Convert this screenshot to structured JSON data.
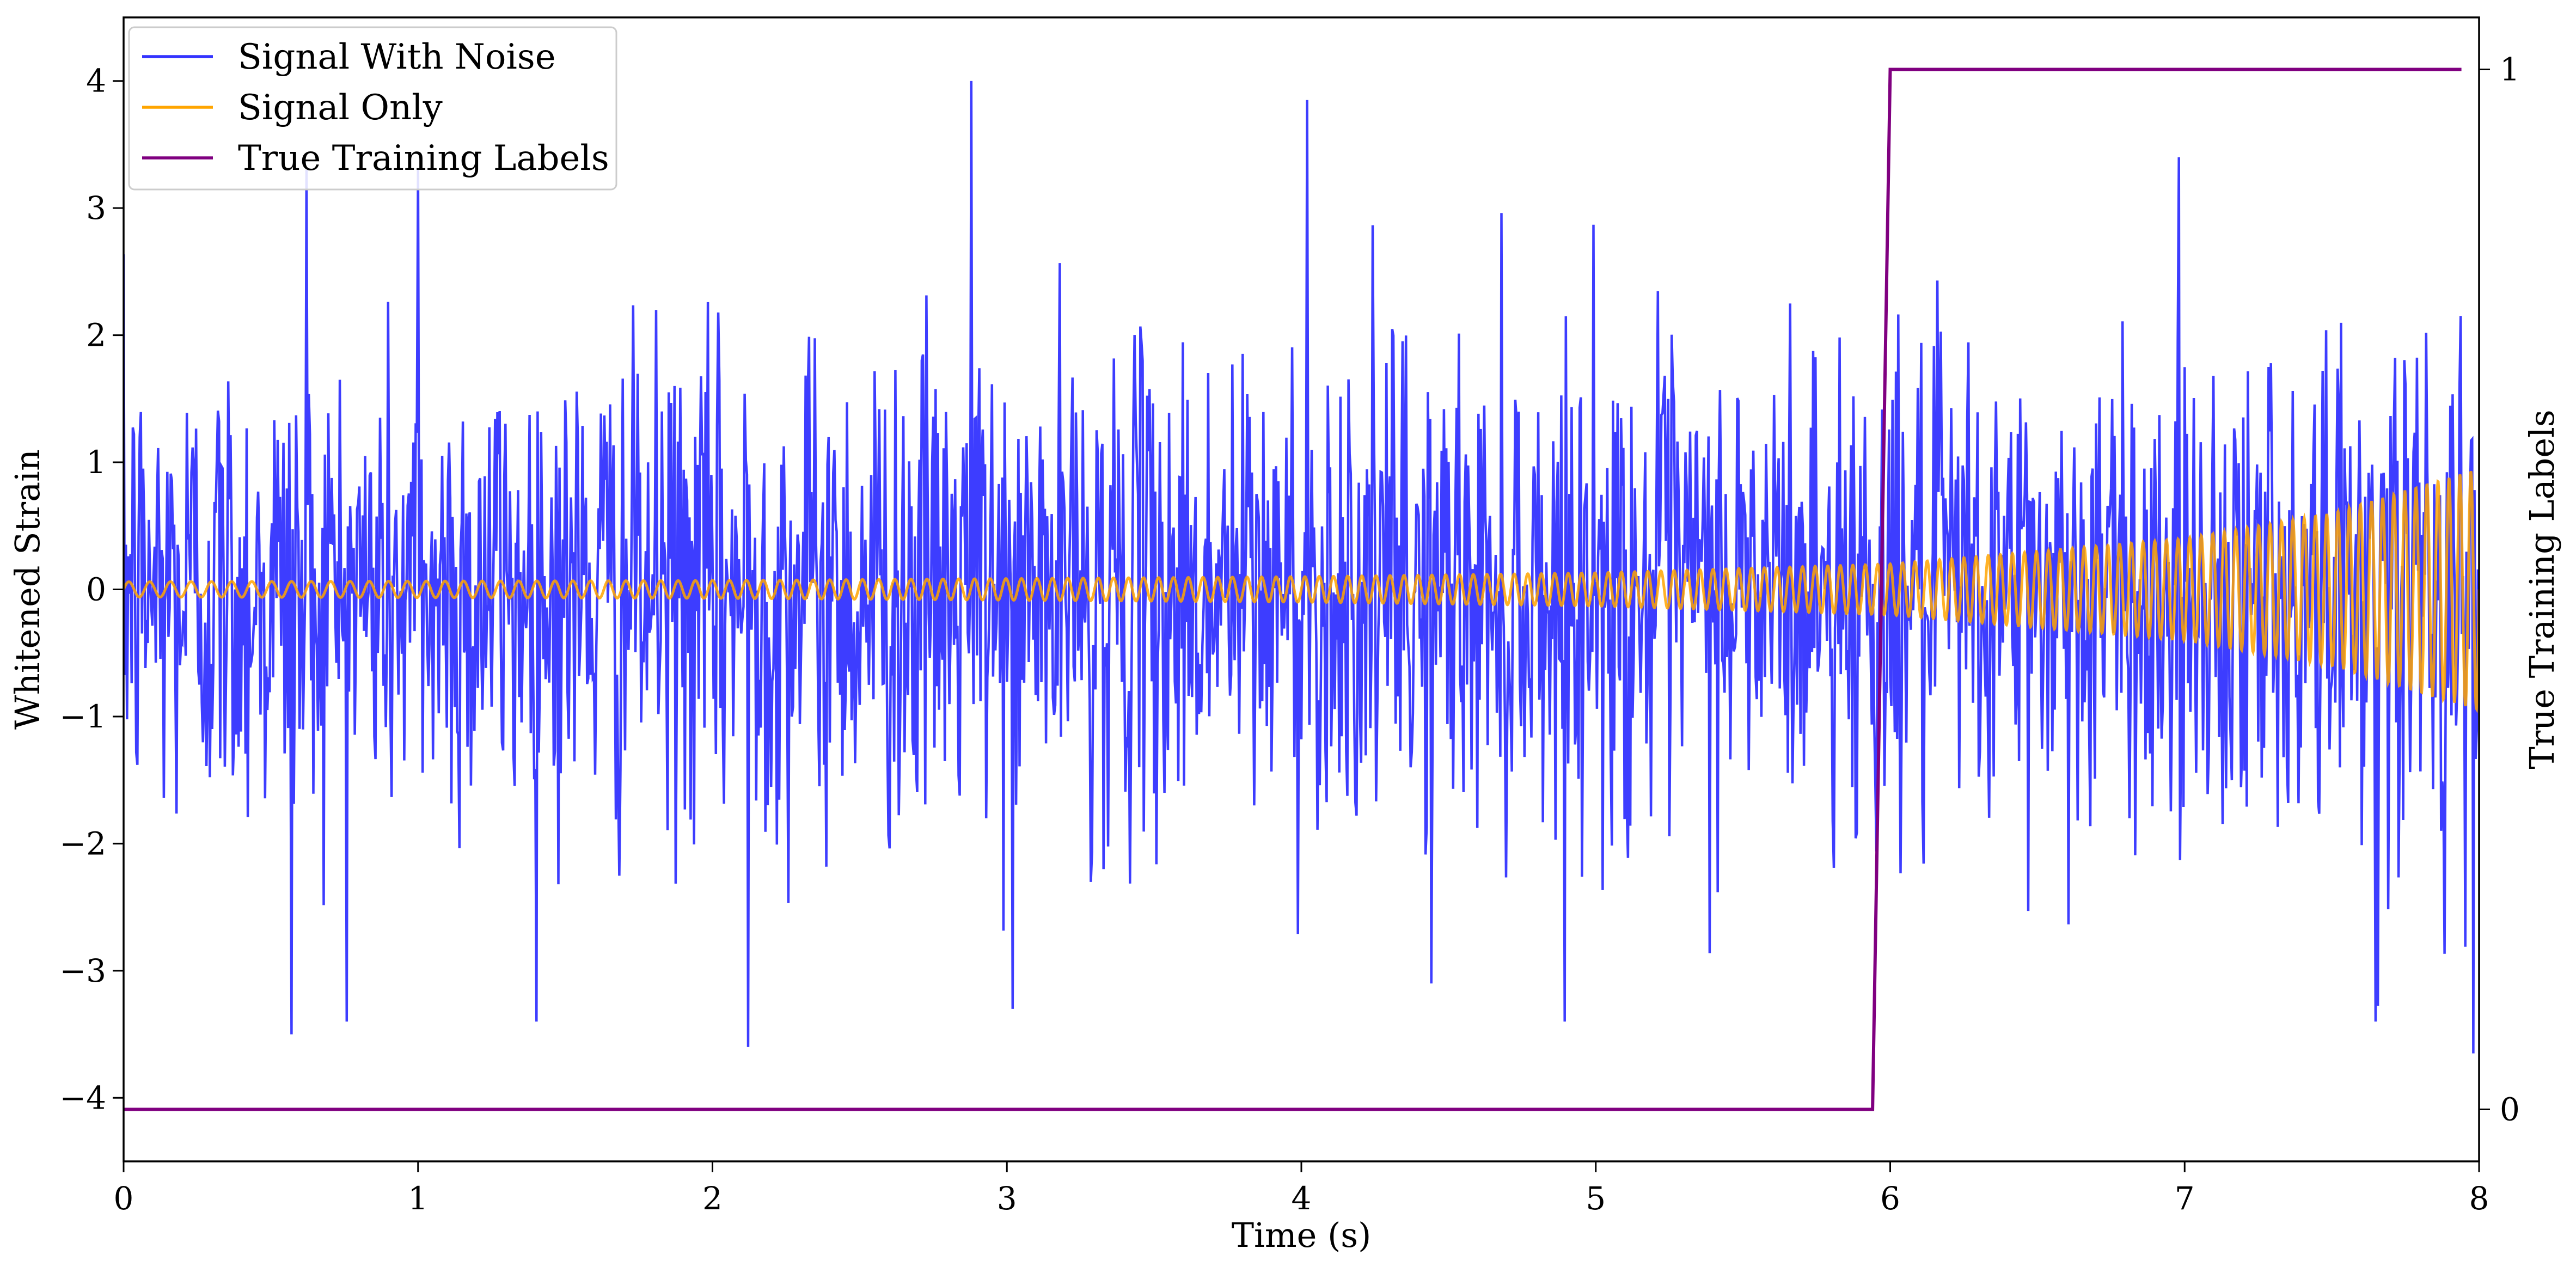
{
  "chart_data": {
    "type": "line",
    "xlabel": "Time (s)",
    "ylabel": "Whitened Strain",
    "y2label": "True Training Labels",
    "xlim": [
      0,
      8
    ],
    "ylim": [
      -4.5,
      4.5
    ],
    "y2lim": [
      -0.05,
      1.05
    ],
    "xticks": [
      0,
      1,
      2,
      3,
      4,
      5,
      6,
      7,
      8
    ],
    "yticks": [
      -4,
      -3,
      -2,
      -1,
      0,
      1,
      2,
      3,
      4
    ],
    "y2ticks": [
      0,
      1
    ],
    "grid": false,
    "legend": "top-left",
    "series": [
      {
        "name": "Signal With Noise",
        "color": "#3333ff",
        "axis": "left",
        "description": "noise-dominated whitened strain",
        "sample_rate_hz": 256,
        "noise_std": 0.95,
        "notable_points": [
          {
            "x": 0.62,
            "y": 3.3
          },
          {
            "x": 1.0,
            "y": 3.3
          },
          {
            "x": 2.88,
            "y": 4.0
          },
          {
            "x": 4.02,
            "y": 3.85
          },
          {
            "x": 2.12,
            "y": -3.6
          },
          {
            "x": 0.57,
            "y": -3.5
          },
          {
            "x": 7.98,
            "y": -3.65
          },
          {
            "x": 4.44,
            "y": -3.1
          },
          {
            "x": 3.02,
            "y": -3.3
          }
        ]
      },
      {
        "name": "Signal Only",
        "color": "#ffa500",
        "axis": "left",
        "description": "chirp whose amplitude grows toward the end",
        "amplitude_at_x": [
          [
            0,
            0.06
          ],
          [
            2,
            0.07
          ],
          [
            4,
            0.1
          ],
          [
            5,
            0.13
          ],
          [
            6,
            0.2
          ],
          [
            7,
            0.4
          ],
          [
            7.5,
            0.6
          ],
          [
            8,
            0.95
          ]
        ],
        "cycles_per_second": [
          [
            0,
            14
          ],
          [
            8,
            27
          ]
        ]
      },
      {
        "name": "True Training Labels",
        "color": "#800080",
        "axis": "right",
        "points": [
          [
            0,
            0
          ],
          [
            5.94,
            0
          ],
          [
            6.0,
            1
          ],
          [
            7.94,
            1
          ]
        ]
      }
    ]
  }
}
